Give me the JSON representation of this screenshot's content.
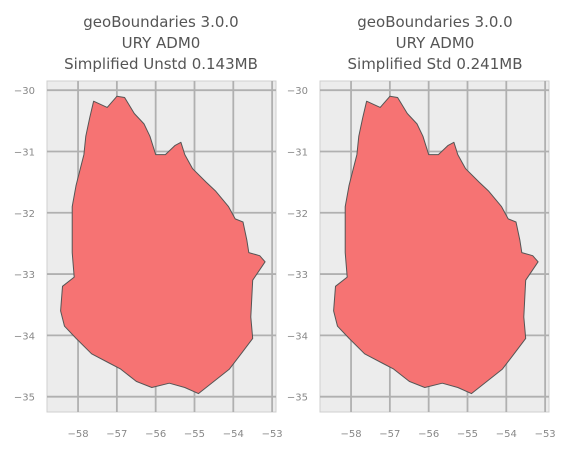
{
  "figure": {
    "panels": [
      {
        "title_lines": [
          "geoBoundaries 3.0.0",
          "URY ADM0",
          "Simplified Unstd 0.143MB"
        ],
        "xlim": [
          -58.8,
          -52.9
        ],
        "ylim": [
          -35.25,
          -29.85
        ]
      },
      {
        "title_lines": [
          "geoBoundaries 3.0.0",
          "URY ADM0",
          "Simplified Std 0.241MB"
        ],
        "xlim": [
          -58.8,
          -52.9
        ],
        "ylim": [
          -35.25,
          -29.85
        ]
      }
    ],
    "x_ticks": [
      -58,
      -57,
      -56,
      -55,
      -54,
      -53
    ],
    "x_tick_labels": [
      "−58",
      "−57",
      "−56",
      "−55",
      "−54",
      "−53"
    ],
    "y_ticks": [
      -30,
      -31,
      -32,
      -33,
      -34,
      -35
    ],
    "y_tick_labels": [
      "−30",
      "−31",
      "−32",
      "−33",
      "−34",
      "−35"
    ],
    "colors": {
      "fill": "#f67373",
      "outline": "#555555",
      "panel_background": "#ececec",
      "grid": "#b0b0b0"
    },
    "shape_lonlat": [
      [
        -57.6,
        -30.18
      ],
      [
        -57.25,
        -30.28
      ],
      [
        -57.0,
        -30.1
      ],
      [
        -56.8,
        -30.12
      ],
      [
        -56.55,
        -30.38
      ],
      [
        -56.3,
        -30.55
      ],
      [
        -56.15,
        -30.75
      ],
      [
        -56.0,
        -31.05
      ],
      [
        -55.75,
        -31.05
      ],
      [
        -55.5,
        -30.9
      ],
      [
        -55.35,
        -30.85
      ],
      [
        -55.25,
        -31.05
      ],
      [
        -55.05,
        -31.28
      ],
      [
        -54.7,
        -31.5
      ],
      [
        -54.45,
        -31.65
      ],
      [
        -54.12,
        -31.9
      ],
      [
        -53.95,
        -32.1
      ],
      [
        -53.75,
        -32.15
      ],
      [
        -53.65,
        -32.45
      ],
      [
        -53.6,
        -32.65
      ],
      [
        -53.32,
        -32.7
      ],
      [
        -53.18,
        -32.8
      ],
      [
        -53.5,
        -33.1
      ],
      [
        -53.52,
        -33.35
      ],
      [
        -53.55,
        -33.7
      ],
      [
        -53.5,
        -34.05
      ],
      [
        -53.8,
        -34.3
      ],
      [
        -54.1,
        -34.55
      ],
      [
        -54.5,
        -34.75
      ],
      [
        -54.9,
        -34.95
      ],
      [
        -55.25,
        -34.85
      ],
      [
        -55.65,
        -34.78
      ],
      [
        -56.1,
        -34.85
      ],
      [
        -56.5,
        -34.75
      ],
      [
        -56.9,
        -34.55
      ],
      [
        -57.2,
        -34.45
      ],
      [
        -57.65,
        -34.3
      ],
      [
        -58.05,
        -34.05
      ],
      [
        -58.35,
        -33.85
      ],
      [
        -58.45,
        -33.6
      ],
      [
        -58.4,
        -33.2
      ],
      [
        -58.1,
        -33.05
      ],
      [
        -58.15,
        -32.65
      ],
      [
        -58.15,
        -32.25
      ],
      [
        -58.15,
        -31.9
      ],
      [
        -58.05,
        -31.55
      ],
      [
        -57.95,
        -31.3
      ],
      [
        -57.85,
        -31.05
      ],
      [
        -57.8,
        -30.75
      ],
      [
        -57.7,
        -30.45
      ]
    ]
  }
}
